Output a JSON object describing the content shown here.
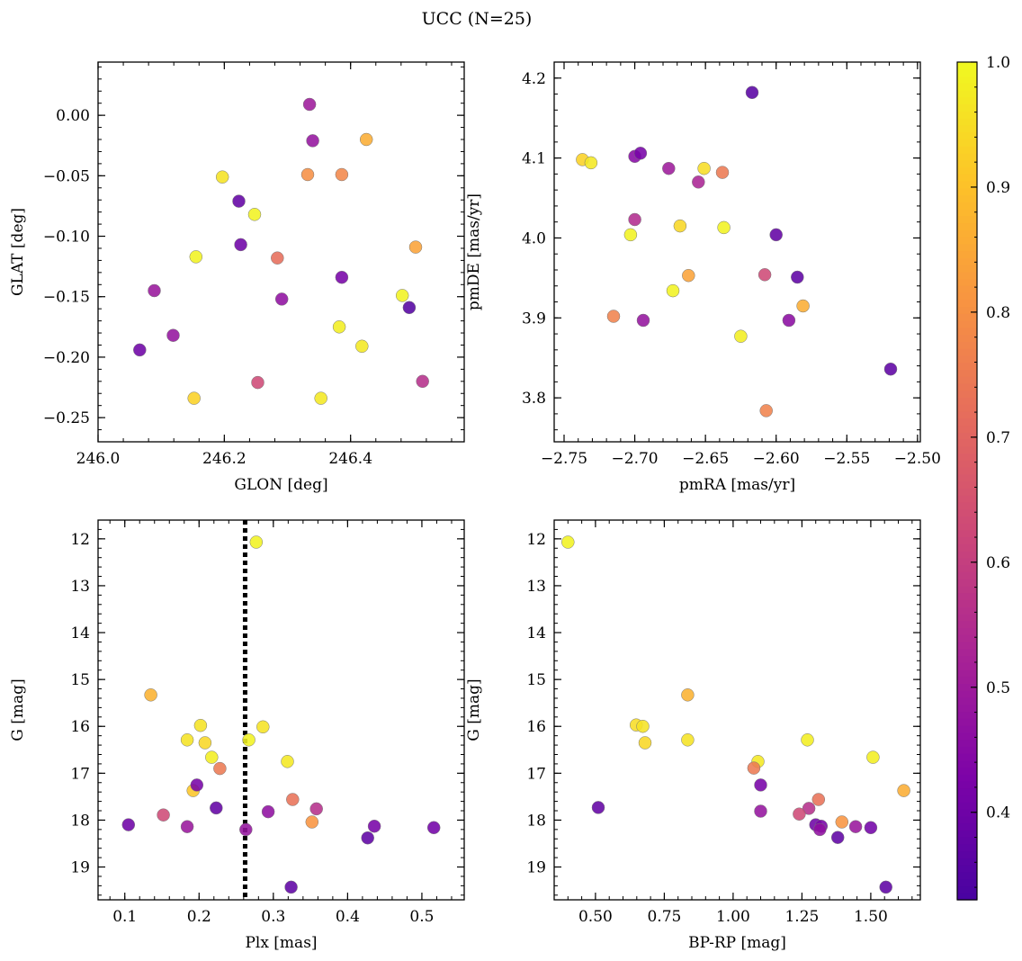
{
  "figure": {
    "title": "UCC (N=25)",
    "colorbar": {
      "colormap": "plasma",
      "range": [
        0.33,
        1.0
      ],
      "ticks": [
        0.4,
        0.5,
        0.6,
        0.7,
        0.8,
        0.9,
        1.0
      ],
      "tick_labels": [
        "0.4",
        "0.5",
        "0.6",
        "0.7",
        "0.8",
        "0.9",
        "1.0"
      ]
    }
  },
  "chart_data": [
    {
      "type": "scatter",
      "id": "lb",
      "xlabel": "GLON [deg]",
      "ylabel": "GLAT [deg]",
      "xlim": [
        246.0,
        246.58
      ],
      "ylim": [
        -0.27,
        0.044
      ],
      "xticks": [
        246.0,
        246.2,
        246.4
      ],
      "xtick_labels": [
        "246.0",
        "246.2",
        "246.4"
      ],
      "yticks": [
        0.0,
        -0.05,
        -0.1,
        -0.15,
        -0.2,
        -0.25
      ],
      "ytick_labels": [
        "0.00",
        "−0.05",
        "−0.10",
        "−0.15",
        "−0.20",
        "−0.25"
      ],
      "x": [
        246.335,
        246.34,
        246.425,
        246.197,
        246.332,
        246.386,
        246.223,
        246.248,
        246.226,
        246.503,
        246.284,
        246.155,
        246.089,
        246.386,
        246.291,
        246.482,
        246.493,
        246.382,
        246.119,
        246.418,
        246.066,
        246.253,
        246.514,
        246.152,
        246.353
      ],
      "y": [
        0.009,
        -0.021,
        -0.02,
        -0.051,
        -0.049,
        -0.049,
        -0.071,
        -0.082,
        -0.107,
        -0.109,
        -0.118,
        -0.117,
        -0.145,
        -0.134,
        -0.152,
        -0.149,
        -0.159,
        -0.175,
        -0.182,
        -0.191,
        -0.194,
        -0.221,
        -0.22,
        -0.234,
        -0.234
      ],
      "c": [
        0.5,
        0.48,
        0.86,
        0.96,
        0.8,
        0.78,
        0.38,
        0.99,
        0.4,
        0.84,
        0.72,
        0.99,
        0.49,
        0.42,
        0.47,
        0.99,
        0.35,
        0.98,
        0.48,
        0.97,
        0.4,
        0.63,
        0.56,
        0.93,
        0.97
      ]
    },
    {
      "type": "scatter",
      "id": "pm",
      "xlabel": "pmRA [mas/yr]",
      "ylabel": "pmDE [mas/yr]",
      "xlim": [
        -2.757,
        -2.498
      ],
      "ylim": [
        3.745,
        4.22
      ],
      "xticks": [
        -2.75,
        -2.7,
        -2.65,
        -2.6,
        -2.55,
        -2.5
      ],
      "xtick_labels": [
        "−2.75",
        "−2.70",
        "−2.65",
        "−2.60",
        "−2.55",
        "−2.50"
      ],
      "yticks": [
        3.8,
        3.9,
        4.0,
        4.1,
        4.2
      ],
      "ytick_labels": [
        "3.8",
        "3.9",
        "4.0",
        "4.1",
        "4.2"
      ],
      "x": [
        -2.617,
        -2.737,
        -2.731,
        -2.7,
        -2.696,
        -2.676,
        -2.651,
        -2.638,
        -2.655,
        -2.7,
        -2.668,
        -2.637,
        -2.703,
        -2.6,
        -2.662,
        -2.608,
        -2.585,
        -2.673,
        -2.581,
        -2.715,
        -2.694,
        -2.591,
        -2.625,
        -2.519,
        -2.607
      ],
      "y": [
        4.182,
        4.098,
        4.094,
        4.102,
        4.106,
        4.087,
        4.087,
        4.082,
        4.07,
        4.023,
        4.015,
        4.013,
        4.004,
        4.004,
        3.953,
        3.954,
        3.951,
        3.934,
        3.915,
        3.902,
        3.897,
        3.897,
        3.877,
        3.836,
        3.784
      ],
      "c": [
        0.36,
        0.93,
        0.97,
        0.45,
        0.42,
        0.5,
        0.95,
        0.75,
        0.53,
        0.55,
        0.94,
        0.99,
        0.99,
        0.38,
        0.84,
        0.63,
        0.37,
        0.99,
        0.86,
        0.77,
        0.48,
        0.46,
        0.98,
        0.37,
        0.77
      ]
    },
    {
      "type": "scatter",
      "id": "plx",
      "xlabel": "Plx [mas]",
      "ylabel": "G [mag]",
      "xlim": [
        0.064,
        0.557
      ],
      "ylim": [
        19.7,
        11.6
      ],
      "invert_y": true,
      "vline": 0.262,
      "xticks": [
        0.1,
        0.2,
        0.3,
        0.4,
        0.5
      ],
      "xtick_labels": [
        "0.1",
        "0.2",
        "0.3",
        "0.4",
        "0.5"
      ],
      "yticks": [
        12,
        13,
        14,
        15,
        16,
        17,
        18,
        19
      ],
      "ytick_labels": [
        "12",
        "13",
        "14",
        "15",
        "16",
        "17",
        "18",
        "19"
      ],
      "x": [
        0.277,
        0.135,
        0.202,
        0.286,
        0.184,
        0.208,
        0.267,
        0.217,
        0.319,
        0.228,
        0.192,
        0.197,
        0.326,
        0.358,
        0.223,
        0.293,
        0.152,
        0.352,
        0.105,
        0.184,
        0.436,
        0.263,
        0.516,
        0.427,
        0.324
      ],
      "y": [
        12.07,
        15.33,
        15.98,
        16.01,
        16.29,
        16.35,
        16.29,
        16.66,
        16.75,
        16.9,
        17.37,
        17.25,
        17.56,
        17.76,
        17.74,
        17.82,
        17.89,
        18.04,
        18.1,
        18.14,
        18.13,
        18.2,
        18.16,
        18.38,
        19.43
      ],
      "c": [
        0.99,
        0.87,
        0.96,
        0.96,
        0.96,
        0.94,
        0.99,
        0.98,
        0.97,
        0.75,
        0.91,
        0.42,
        0.73,
        0.56,
        0.38,
        0.47,
        0.63,
        0.81,
        0.4,
        0.49,
        0.42,
        0.48,
        0.41,
        0.37,
        0.37
      ]
    },
    {
      "type": "scatter",
      "id": "cmd",
      "xlabel": "BP-RP [mag]",
      "ylabel": "G [mag]",
      "xlim": [
        0.35,
        1.68
      ],
      "ylim": [
        19.7,
        11.6
      ],
      "invert_y": true,
      "xticks": [
        0.5,
        0.75,
        1.0,
        1.25,
        1.5
      ],
      "xtick_labels": [
        "0.50",
        "0.75",
        "1.00",
        "1.25",
        "1.50"
      ],
      "yticks": [
        12,
        13,
        14,
        15,
        16,
        17,
        18,
        19
      ],
      "ytick_labels": [
        "12",
        "13",
        "14",
        "15",
        "16",
        "17",
        "18",
        "19"
      ],
      "x": [
        0.4,
        0.835,
        0.648,
        0.672,
        0.68,
        0.835,
        1.27,
        1.508,
        1.09,
        1.075,
        1.62,
        1.1,
        0.51,
        1.31,
        1.275,
        1.1,
        1.24,
        1.395,
        1.3,
        1.32,
        1.445,
        1.5,
        1.38,
        1.555,
        1.315
      ],
      "y": [
        12.07,
        15.33,
        15.97,
        16.0,
        16.35,
        16.29,
        16.29,
        16.66,
        16.75,
        16.89,
        17.37,
        17.25,
        17.73,
        17.56,
        17.75,
        17.81,
        17.87,
        18.04,
        18.1,
        18.13,
        18.14,
        18.16,
        18.37,
        19.43,
        18.2
      ],
      "c": [
        0.99,
        0.87,
        0.95,
        0.96,
        0.94,
        0.96,
        0.98,
        0.98,
        0.97,
        0.75,
        0.86,
        0.42,
        0.38,
        0.73,
        0.56,
        0.48,
        0.63,
        0.81,
        0.4,
        0.42,
        0.49,
        0.41,
        0.37,
        0.37,
        0.47
      ]
    }
  ]
}
